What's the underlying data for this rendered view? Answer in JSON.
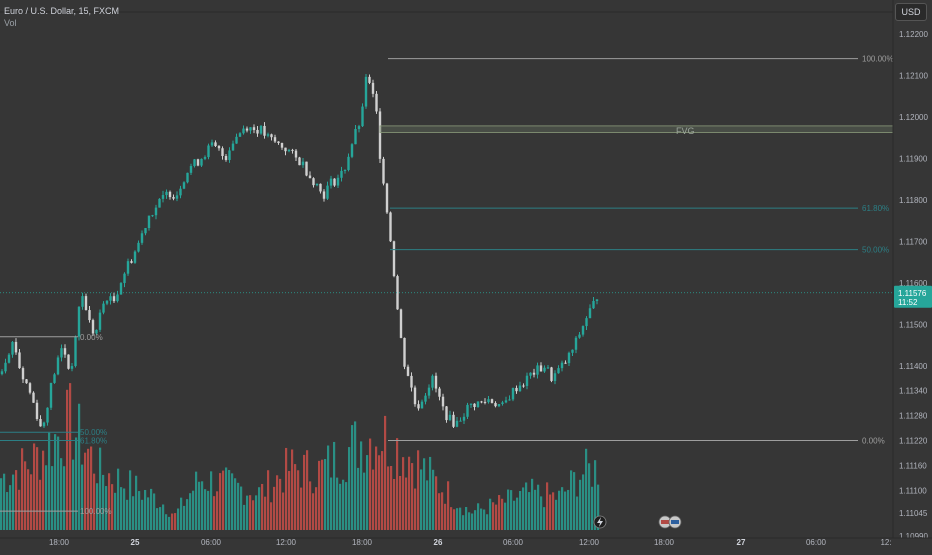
{
  "header": {
    "title": "Euro / U.S. Dollar, 15, FXCM",
    "volume_label": "Vol",
    "currency_button": "USD"
  },
  "colors": {
    "background": "#363636",
    "up": "#26a69a",
    "down": "#d0d0d0",
    "vol_up": "#2a8f84",
    "vol_down": "#b24a45",
    "fib_zero": "#9e9e9e",
    "fib_level": "#2c7f85",
    "fvg": "#8a9a7a",
    "price_tag": "#26a69a"
  },
  "chart_data": {
    "type": "candlestick",
    "title": "Euro / U.S. Dollar, 15, FXCM",
    "ylim": [
      1.1099,
      1.1225
    ],
    "y_ticks": [
      "1.12200",
      "1.12100",
      "1.12000",
      "1.11900",
      "1.11800",
      "1.11700",
      "1.11600",
      "1.11500",
      "1.11400",
      "1.11340",
      "1.11280",
      "1.11220",
      "1.11160",
      "1.11100",
      "1.11045",
      "1.10990"
    ],
    "x_ticks": [
      "18:00",
      "25",
      "06:00",
      "12:00",
      "18:00",
      "26",
      "06:00",
      "12:00",
      "18:00",
      "27",
      "06:00",
      "12:"
    ],
    "last_price": {
      "value": 1.11576,
      "label": "1.11576",
      "countdown": "11:52"
    },
    "fvg": {
      "label": "FVG",
      "top": 1.11978,
      "bottom": 1.11962
    },
    "fib_levels": [
      {
        "label": "100.00%",
        "price": 1.1214
      },
      {
        "label": "61.80%",
        "price": 1.1178
      },
      {
        "label": "50.00%",
        "price": 1.1168
      },
      {
        "label": "0.00%",
        "price": 1.1122
      }
    ],
    "fib_left": [
      {
        "label": "0.00%",
        "price": 1.1147
      },
      {
        "label": "50.00%",
        "price": 1.1124
      },
      {
        "label": "61.80%",
        "price": 1.1122
      },
      {
        "label": "100.00%",
        "price": 1.1105
      }
    ],
    "close_path": [
      [
        0,
        1.1138
      ],
      [
        7,
        1.1143
      ],
      [
        14,
        1.1146
      ],
      [
        21,
        1.1138
      ],
      [
        28,
        1.1135
      ],
      [
        35,
        1.113
      ],
      [
        42,
        1.1124
      ],
      [
        49,
        1.1133
      ],
      [
        56,
        1.114
      ],
      [
        63,
        1.1145
      ],
      [
        70,
        1.1138
      ],
      [
        77,
        1.1148
      ],
      [
        80,
        1.1158
      ],
      [
        85,
        1.1155
      ],
      [
        90,
        1.115
      ],
      [
        95,
        1.1147
      ],
      [
        100,
        1.1152
      ],
      [
        106,
        1.1157
      ],
      [
        113,
        1.1155
      ],
      [
        120,
        1.116
      ],
      [
        127,
        1.1164
      ],
      [
        134,
        1.1167
      ],
      [
        141,
        1.1171
      ],
      [
        148,
        1.1176
      ],
      [
        155,
        1.1178
      ],
      [
        162,
        1.118
      ],
      [
        169,
        1.1182
      ],
      [
        176,
        1.1181
      ],
      [
        183,
        1.1185
      ],
      [
        190,
        1.1188
      ],
      [
        197,
        1.1189
      ],
      [
        204,
        1.1191
      ],
      [
        211,
        1.1193
      ],
      [
        218,
        1.1192
      ],
      [
        225,
        1.119
      ],
      [
        232,
        1.1194
      ],
      [
        239,
        1.1196
      ],
      [
        246,
        1.1198
      ],
      [
        253,
        1.1197
      ],
      [
        260,
        1.1197
      ],
      [
        267,
        1.1195
      ],
      [
        274,
        1.1194
      ],
      [
        281,
        1.1193
      ],
      [
        288,
        1.1192
      ],
      [
        295,
        1.119
      ],
      [
        302,
        1.1189
      ],
      [
        309,
        1.1186
      ],
      [
        316,
        1.1184
      ],
      [
        323,
        1.1181
      ],
      [
        330,
        1.1184
      ],
      [
        337,
        1.1185
      ],
      [
        344,
        1.1187
      ],
      [
        351,
        1.1193
      ],
      [
        357,
        1.1197
      ],
      [
        362,
        1.12
      ],
      [
        366,
        1.121
      ],
      [
        370,
        1.1207
      ],
      [
        374,
        1.1204
      ],
      [
        377,
        1.12
      ],
      [
        380,
        1.1191
      ],
      [
        384,
        1.1184
      ],
      [
        388,
        1.1175
      ],
      [
        392,
        1.1168
      ],
      [
        396,
        1.1157
      ],
      [
        400,
        1.1148
      ],
      [
        404,
        1.1141
      ],
      [
        408,
        1.1138
      ],
      [
        412,
        1.1134
      ],
      [
        416,
        1.113
      ],
      [
        420,
        1.1131
      ],
      [
        426,
        1.1134
      ],
      [
        432,
        1.1137
      ],
      [
        438,
        1.1133
      ],
      [
        444,
        1.1129
      ],
      [
        450,
        1.1127
      ],
      [
        456,
        1.1126
      ],
      [
        462,
        1.1128
      ],
      [
        468,
        1.113
      ],
      [
        475,
        1.1131
      ],
      [
        482,
        1.1131
      ],
      [
        489,
        1.1132
      ],
      [
        496,
        1.1131
      ],
      [
        503,
        1.113
      ],
      [
        510,
        1.1133
      ],
      [
        517,
        1.1135
      ],
      [
        524,
        1.1136
      ],
      [
        531,
        1.1138
      ],
      [
        538,
        1.1139
      ],
      [
        545,
        1.114
      ],
      [
        552,
        1.1137
      ],
      [
        559,
        1.1139
      ],
      [
        566,
        1.1141
      ],
      [
        573,
        1.1144
      ],
      [
        580,
        1.1148
      ],
      [
        587,
        1.1152
      ],
      [
        594,
        1.1155
      ],
      [
        598,
        1.11576
      ]
    ],
    "volume_path": [
      [
        0,
        0.35
      ],
      [
        30,
        0.45
      ],
      [
        70,
        0.72
      ],
      [
        100,
        0.4
      ],
      [
        130,
        0.3
      ],
      [
        160,
        0.2
      ],
      [
        175,
        0.1
      ],
      [
        200,
        0.35
      ],
      [
        230,
        0.3
      ],
      [
        260,
        0.25
      ],
      [
        290,
        0.42
      ],
      [
        320,
        0.4
      ],
      [
        350,
        0.55
      ],
      [
        360,
        0.6
      ],
      [
        380,
        0.65
      ],
      [
        410,
        0.5
      ],
      [
        440,
        0.3
      ],
      [
        470,
        0.12
      ],
      [
        500,
        0.18
      ],
      [
        530,
        0.25
      ],
      [
        560,
        0.22
      ],
      [
        580,
        0.38
      ],
      [
        598,
        0.42
      ]
    ],
    "volume_max": 0.72
  }
}
